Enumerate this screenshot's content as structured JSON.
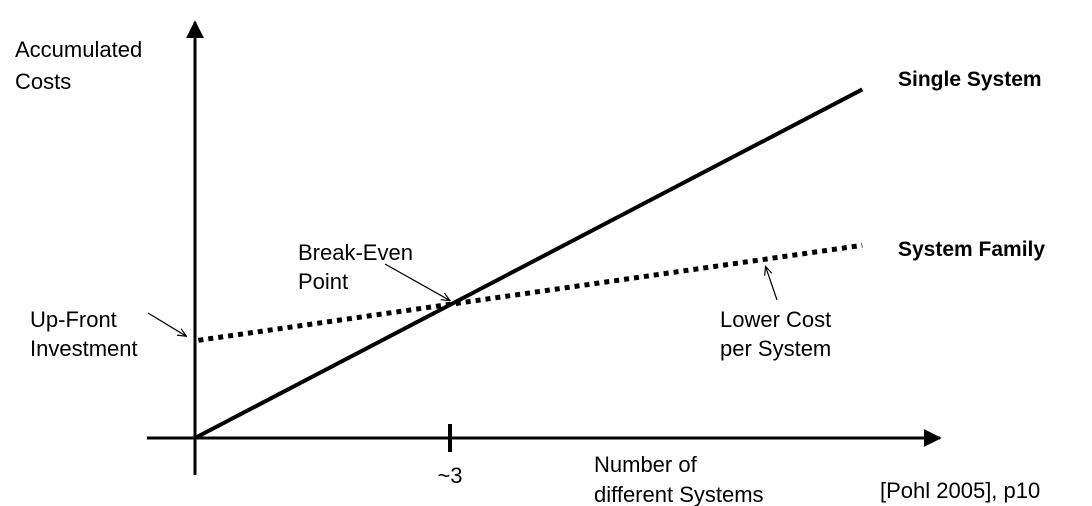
{
  "chart_data": {
    "type": "line",
    "ylabel": [
      "Accumulated",
      "Costs"
    ],
    "xlabel": [
      "Number of",
      "different Systems"
    ],
    "x_ticks": [
      {
        "value": 3,
        "label": "~3"
      }
    ],
    "xlim": [
      0,
      8.8
    ],
    "ylim": [
      0,
      9.4
    ],
    "grid": false,
    "series": [
      {
        "name": "Single System",
        "style": "solid",
        "color": "#000000",
        "x": [
          0,
          7.85
        ],
        "y": [
          0,
          7.85
        ]
      },
      {
        "name": "System Family",
        "style": "dotted",
        "color": "#000000",
        "x": [
          0.04,
          7.85
        ],
        "y": [
          2.2,
          4.34
        ]
      }
    ],
    "annotations": [
      {
        "text": [
          "Up-Front",
          "Investment"
        ],
        "points_to": {
          "x": 0.04,
          "y": 2.2
        }
      },
      {
        "text": [
          "Break-Even",
          "Point"
        ],
        "points_to": {
          "x": 3,
          "y": 3.05
        }
      },
      {
        "text": [
          "Lower Cost",
          "per System"
        ],
        "points_to": {
          "x": 6.7,
          "y": 4.0
        }
      }
    ],
    "source": "[Pohl 2005], p10"
  }
}
